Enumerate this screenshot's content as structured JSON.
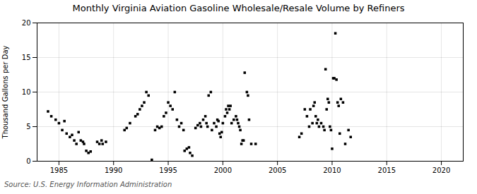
{
  "chart_data": {
    "type": "scatter",
    "title": "Monthly Virginia Aviation Gasoline Wholesale/Resale Volume by Refiners",
    "ylabel": "Thousand Gallons per Day",
    "source": "Source: U.S. Energy Information Administration",
    "marker": "square",
    "grid": true,
    "xlim": [
      1983,
      2022
    ],
    "ylim": [
      0,
      20
    ],
    "xticks": [
      1985,
      1990,
      1995,
      2000,
      2005,
      2010,
      2015,
      2020
    ],
    "yticks": [
      0,
      5,
      10,
      15,
      20
    ],
    "x": [
      1984.0,
      1984.3,
      1984.7,
      1985.0,
      1985.3,
      1985.5,
      1985.7,
      1986.0,
      1986.2,
      1986.4,
      1986.6,
      1986.8,
      1987.0,
      1987.2,
      1987.3,
      1987.5,
      1987.7,
      1987.9,
      1988.5,
      1988.7,
      1988.9,
      1989.0,
      1989.3,
      1991.0,
      1991.2,
      1991.5,
      1992.0,
      1992.2,
      1992.4,
      1992.6,
      1992.8,
      1993.0,
      1993.2,
      1993.5,
      1993.8,
      1994.0,
      1994.2,
      1994.4,
      1994.6,
      1994.8,
      1995.0,
      1995.2,
      1995.4,
      1995.6,
      1995.8,
      1996.0,
      1996.2,
      1996.4,
      1996.5,
      1996.7,
      1996.9,
      1997.0,
      1997.2,
      1997.5,
      1997.7,
      1997.9,
      1998.0,
      1998.2,
      1998.4,
      1998.5,
      1998.6,
      1998.7,
      1998.9,
      1999.0,
      1999.2,
      1999.4,
      1999.5,
      1999.6,
      1999.7,
      1999.8,
      1999.9,
      2000.0,
      2000.2,
      2000.3,
      2000.4,
      2000.5,
      2000.6,
      2000.7,
      2000.8,
      2001.0,
      2001.2,
      2001.3,
      2001.4,
      2001.5,
      2001.6,
      2001.7,
      2001.8,
      2001.9,
      2002.0,
      2002.2,
      2002.3,
      2002.4,
      2002.6,
      2003.0,
      2007.0,
      2007.2,
      2007.5,
      2007.7,
      2007.9,
      2008.0,
      2008.2,
      2008.3,
      2008.4,
      2008.5,
      2008.6,
      2008.7,
      2008.8,
      2009.0,
      2009.2,
      2009.3,
      2009.4,
      2009.5,
      2009.6,
      2009.7,
      2009.8,
      2009.9,
      2010.0,
      2010.1,
      2010.2,
      2010.3,
      2010.4,
      2010.5,
      2010.6,
      2010.7,
      2010.8,
      2011.0,
      2011.2,
      2011.5,
      2011.7
    ],
    "values": [
      7.2,
      6.5,
      6.0,
      5.5,
      4.5,
      5.8,
      4.0,
      3.5,
      3.8,
      3.0,
      2.5,
      4.2,
      3.0,
      2.8,
      2.5,
      1.5,
      1.2,
      1.4,
      2.8,
      2.5,
      3.0,
      2.5,
      2.8,
      4.5,
      4.8,
      5.5,
      6.5,
      6.8,
      7.5,
      8.0,
      8.5,
      10.0,
      9.5,
      0.2,
      4.5,
      5.0,
      4.8,
      5.0,
      6.5,
      7.0,
      8.5,
      8.0,
      7.5,
      10.0,
      6.0,
      5.0,
      5.5,
      4.5,
      1.5,
      1.8,
      2.0,
      1.2,
      0.8,
      4.8,
      5.2,
      5.5,
      5.0,
      6.0,
      6.5,
      5.5,
      5.0,
      9.5,
      10.0,
      4.5,
      5.5,
      5.0,
      6.0,
      5.8,
      4.0,
      3.5,
      4.2,
      5.5,
      6.5,
      7.5,
      7.0,
      8.0,
      7.5,
      8.0,
      5.5,
      6.0,
      6.5,
      6.0,
      5.5,
      5.0,
      4.5,
      2.5,
      3.0,
      3.0,
      12.8,
      10.0,
      9.5,
      6.0,
      2.5,
      2.5,
      3.5,
      4.0,
      7.5,
      6.5,
      5.0,
      7.5,
      5.5,
      8.0,
      8.5,
      6.5,
      5.5,
      6.0,
      5.0,
      5.5,
      5.0,
      4.5,
      13.3,
      7.5,
      9.0,
      8.5,
      5.0,
      4.5,
      1.8,
      12.0,
      12.0,
      18.5,
      11.8,
      8.5,
      8.0,
      4.0,
      9.0,
      8.5,
      2.5,
      4.5,
      3.5
    ]
  }
}
